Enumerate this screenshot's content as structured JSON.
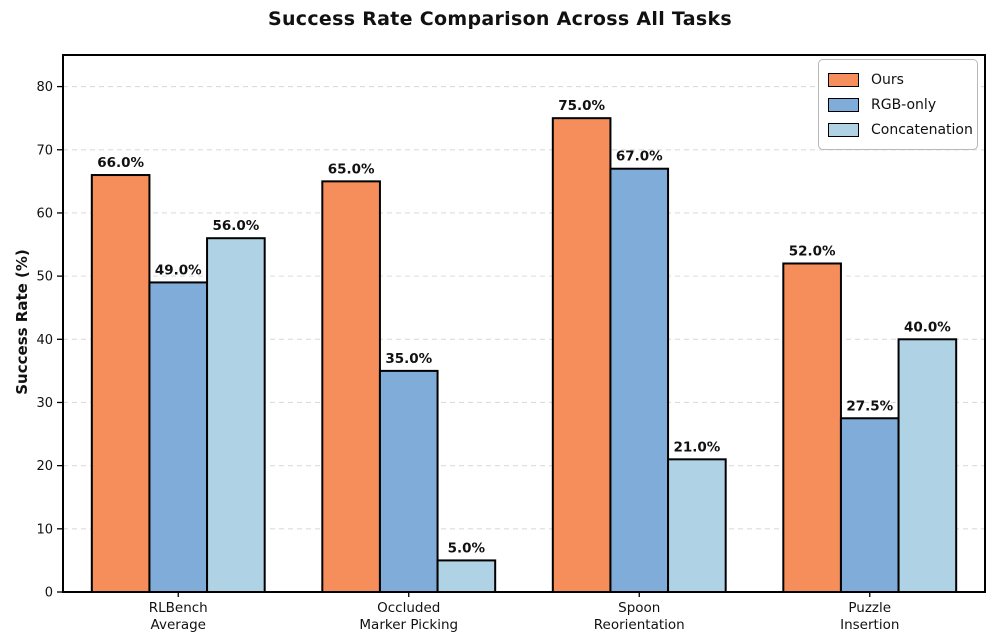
{
  "chart_data": {
    "type": "bar",
    "title": "Success Rate Comparison Across All Tasks",
    "categories": [
      "RLBench\nAverage",
      "Occluded\nMarker Picking",
      "Spoon\nReorientation",
      "Puzzle\nInsertion"
    ],
    "series": [
      {
        "name": "Ours",
        "color": "#F68E5B",
        "values": [
          66.0,
          65.0,
          75.0,
          52.0
        ]
      },
      {
        "name": "RGB-only",
        "color": "#7FACD8",
        "values": [
          49.0,
          35.0,
          67.0,
          27.5
        ]
      },
      {
        "name": "Concatenation",
        "color": "#AFD3E5",
        "values": [
          56.0,
          5.0,
          21.0,
          40.0
        ]
      }
    ],
    "xlabel": "",
    "ylabel": "Success Rate (%)",
    "ylim": [
      0,
      85
    ],
    "yticks": [
      0,
      10,
      20,
      30,
      40,
      50,
      60,
      70,
      80
    ],
    "value_labels": true,
    "value_decimals": 1,
    "value_suffix": "%",
    "grid": {
      "axis": "y",
      "style": "dashed",
      "color": "#DCDCDC"
    },
    "legend_position": "upper right",
    "bar_edge_color": "#000000",
    "axis_color": "#000000",
    "background": "#FFFFFF"
  }
}
